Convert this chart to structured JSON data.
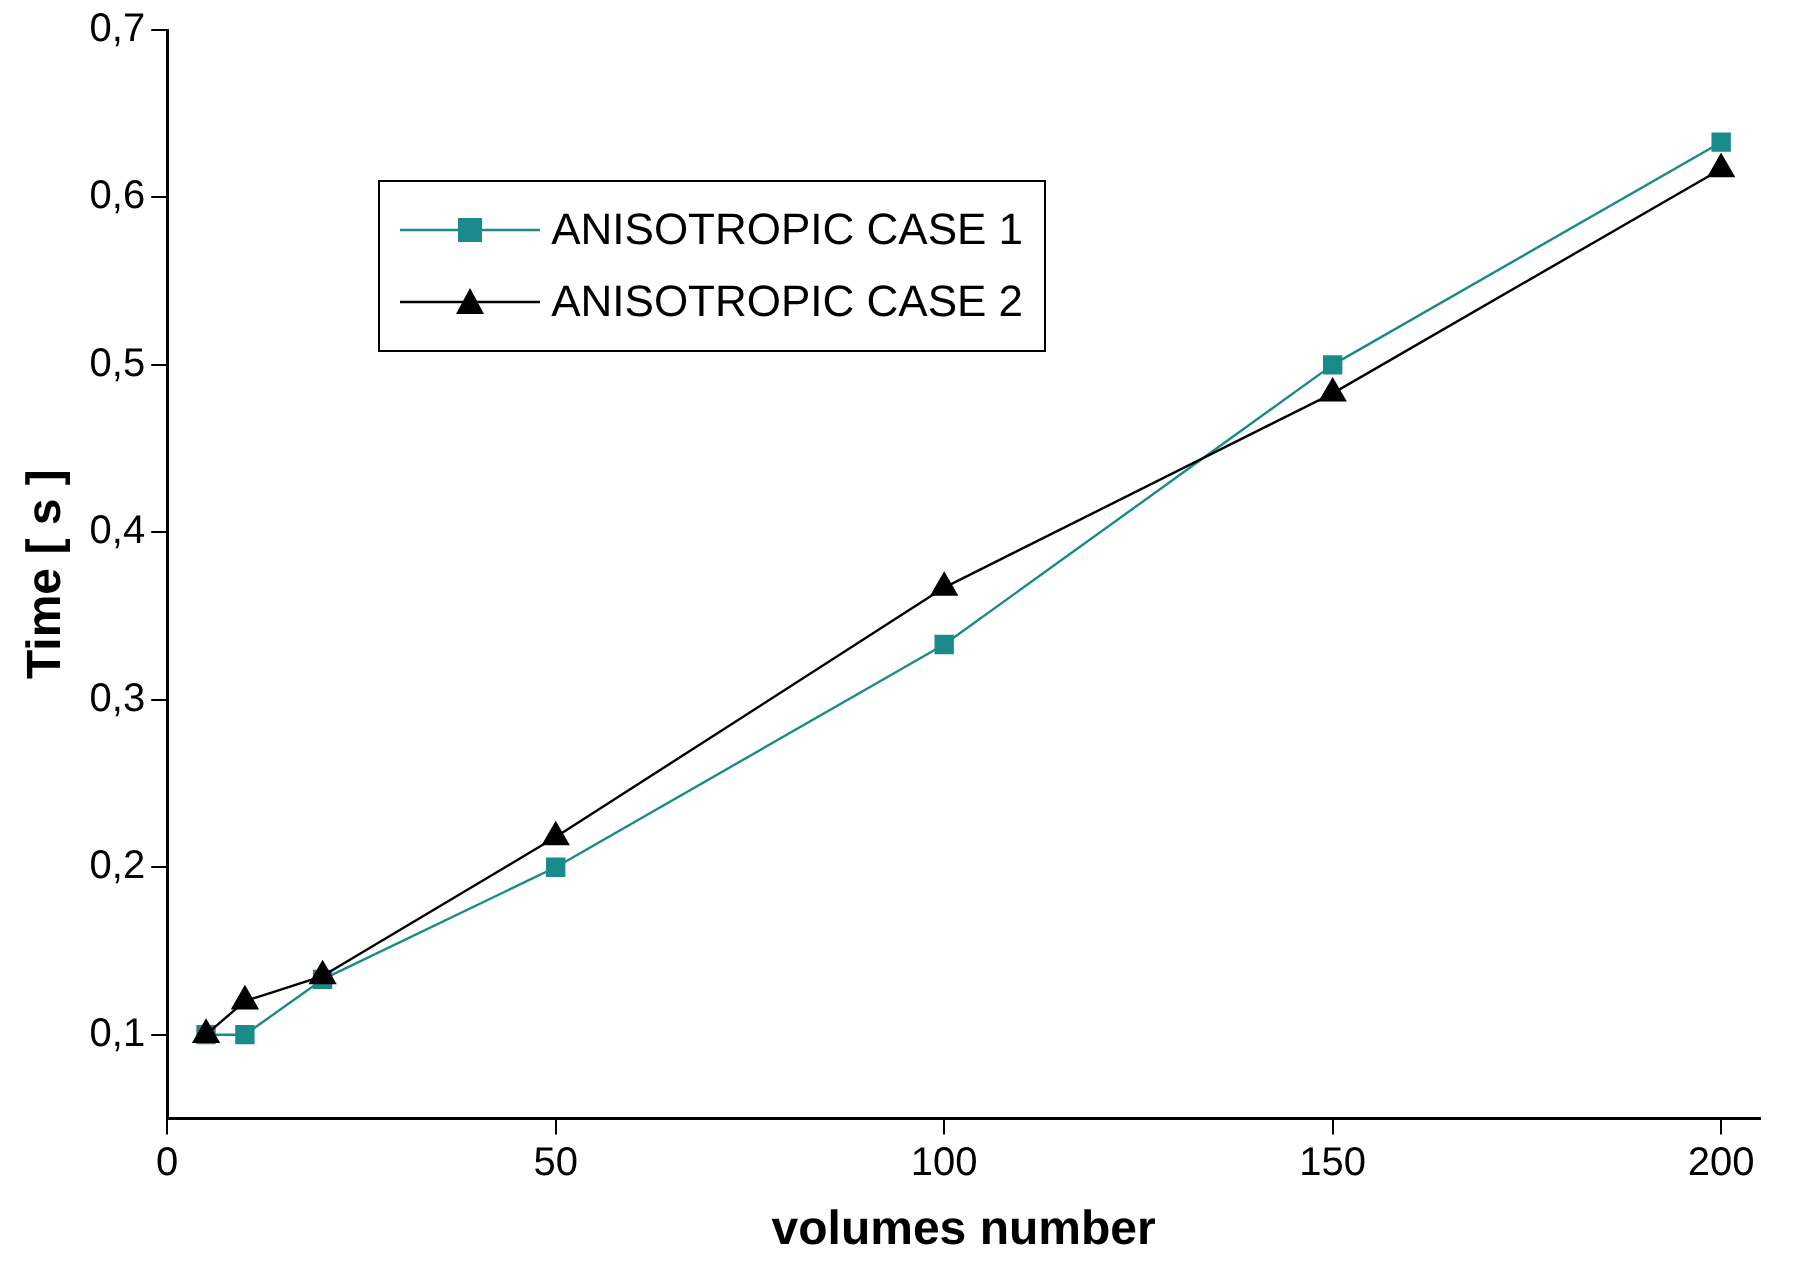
{
  "chart_data": {
    "type": "line",
    "xlabel": "volumes number",
    "ylabel": "Time [ s ]",
    "x": [
      5,
      10,
      20,
      50,
      100,
      150,
      200
    ],
    "series": [
      {
        "name": "ANISOTROPIC CASE 1",
        "color": "#1a8a8a",
        "marker": "square",
        "values": [
          0.1,
          0.1,
          0.133,
          0.2,
          0.333,
          0.5,
          0.633
        ]
      },
      {
        "name": "ANISOTROPIC CASE 2",
        "color": "#000000",
        "marker": "triangle",
        "values": [
          0.1,
          0.12,
          0.135,
          0.218,
          0.367,
          0.483,
          0.617
        ]
      }
    ],
    "xlim": [
      0,
      205
    ],
    "xticks": [
      0,
      50,
      100,
      150,
      200
    ],
    "ylim": [
      0.05,
      0.7
    ],
    "yticks": [
      {
        "value": 0.1,
        "label": "0,1"
      },
      {
        "value": 0.2,
        "label": "0,2"
      },
      {
        "value": 0.3,
        "label": "0,3"
      },
      {
        "value": 0.4,
        "label": "0,4"
      },
      {
        "value": 0.5,
        "label": "0,5"
      },
      {
        "value": 0.6,
        "label": "0,6"
      },
      {
        "value": 0.7,
        "label": "0,7"
      }
    ],
    "grid": false,
    "legend": "top left",
    "line_style": "solid"
  }
}
